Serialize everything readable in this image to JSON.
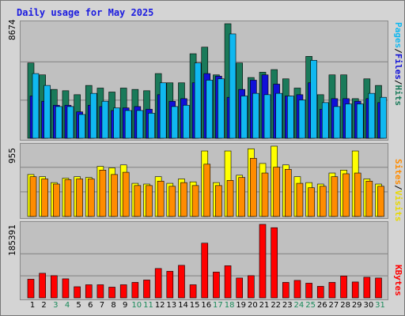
{
  "window": {
    "title": "Daily usage for May 2025"
  },
  "chart_data": [
    {
      "type": "bar",
      "name": "pages-files-hits",
      "categories": [
        "1",
        "2",
        "3",
        "4",
        "5",
        "6",
        "7",
        "8",
        "9",
        "10",
        "11",
        "12",
        "13",
        "14",
        "15",
        "16",
        "17",
        "18",
        "19",
        "20",
        "21",
        "22",
        "23",
        "24",
        "25",
        "26",
        "27",
        "28",
        "29",
        "30",
        "31"
      ],
      "max_label": "8674",
      "ylim": [
        0,
        8674
      ],
      "series": [
        {
          "name": "Hits",
          "color": "#1a7a5a",
          "values": [
            5700,
            4800,
            3700,
            3600,
            3300,
            4000,
            3800,
            3500,
            3800,
            3700,
            3600,
            4900,
            4200,
            4200,
            6400,
            6900,
            4800,
            8674,
            5700,
            4600,
            5000,
            5200,
            4500,
            3800,
            6200,
            3300,
            4800,
            4800,
            3000,
            4500,
            4000
          ]
        },
        {
          "name": "Files",
          "color": "#1010d8",
          "values": [
            3200,
            2800,
            2500,
            2500,
            2000,
            2500,
            2400,
            2100,
            2300,
            2400,
            2200,
            3300,
            2800,
            3000,
            4200,
            4900,
            4700,
            3100,
            3700,
            4400,
            4800,
            4100,
            3200,
            3300,
            4200,
            2200,
            3000,
            3000,
            2800,
            3000,
            2700
          ]
        },
        {
          "name": "Pages",
          "color": "#10b8f0",
          "values": [
            4900,
            4000,
            2400,
            2400,
            1800,
            3400,
            2800,
            2300,
            2100,
            2100,
            1900,
            4200,
            2400,
            2500,
            5700,
            4400,
            4500,
            7900,
            3200,
            3400,
            3300,
            3400,
            3200,
            2900,
            5900,
            2700,
            2400,
            2600,
            2600,
            3400,
            3100
          ]
        }
      ]
    },
    {
      "type": "bar",
      "name": "sites-visits",
      "categories": [
        "1",
        "2",
        "3",
        "4",
        "5",
        "6",
        "7",
        "8",
        "9",
        "10",
        "11",
        "12",
        "13",
        "14",
        "15",
        "16",
        "17",
        "18",
        "19",
        "20",
        "21",
        "22",
        "23",
        "24",
        "25",
        "26",
        "27",
        "28",
        "29",
        "30",
        "31"
      ],
      "max_label": "955",
      "ylim": [
        0,
        955
      ],
      "series": [
        {
          "name": "Visits",
          "color": "#ffff00",
          "values": [
            570,
            540,
            460,
            520,
            540,
            530,
            680,
            660,
            700,
            450,
            440,
            540,
            450,
            510,
            470,
            890,
            460,
            890,
            560,
            920,
            720,
            955,
            700,
            540,
            460,
            440,
            590,
            630,
            890,
            510,
            440
          ]
        },
        {
          "name": "Sites",
          "color": "#ff8c00",
          "values": [
            540,
            510,
            440,
            500,
            510,
            510,
            630,
            570,
            600,
            420,
            420,
            480,
            410,
            460,
            420,
            710,
            420,
            490,
            530,
            790,
            590,
            670,
            640,
            450,
            390,
            410,
            540,
            580,
            590,
            480,
            410
          ]
        }
      ]
    },
    {
      "type": "bar",
      "name": "kbytes",
      "categories": [
        "1",
        "2",
        "3",
        "4",
        "5",
        "6",
        "7",
        "8",
        "9",
        "10",
        "11",
        "12",
        "13",
        "14",
        "15",
        "16",
        "17",
        "18",
        "19",
        "20",
        "21",
        "22",
        "23",
        "24",
        "25",
        "26",
        "27",
        "28",
        "29",
        "30",
        "31"
      ],
      "max_label": "185391",
      "ylim": [
        0,
        185391
      ],
      "series": [
        {
          "name": "KBytes",
          "color": "#ff0000",
          "values": [
            47000,
            62000,
            56000,
            48000,
            28000,
            33000,
            33000,
            27000,
            33000,
            39000,
            45000,
            74000,
            67000,
            82000,
            33000,
            138000,
            65000,
            81000,
            50000,
            56000,
            185391,
            177000,
            39000,
            44000,
            37000,
            29000,
            39000,
            55000,
            40000,
            52000,
            50000
          ]
        }
      ]
    }
  ],
  "legend": {
    "pages": "Pages",
    "files": "Files",
    "hits": "Hits",
    "sites": "Sites",
    "visits": "Visits",
    "kbytes": "KBytes",
    "separator": "/"
  },
  "colors": {
    "title": "#1a1ae0",
    "weekday_label": "#000000",
    "weekend_label": "#1a8a5a",
    "gridline": "#808080"
  },
  "weekend_days": [
    "3",
    "4",
    "10",
    "11",
    "17",
    "18",
    "24",
    "25",
    "31"
  ]
}
